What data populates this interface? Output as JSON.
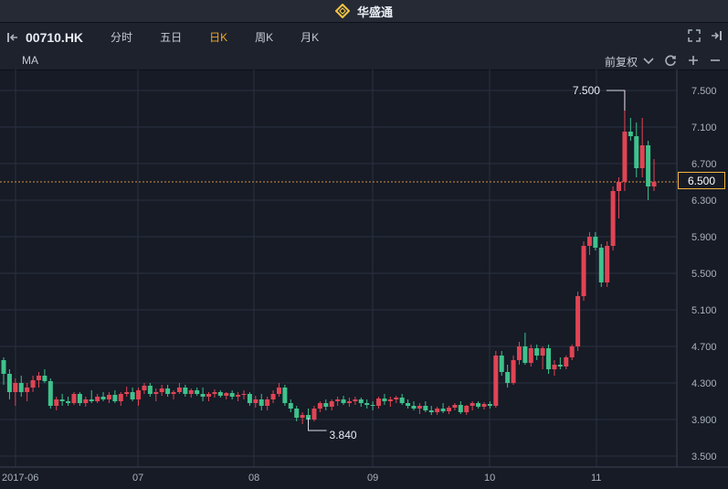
{
  "app": {
    "title": "华盛通"
  },
  "toolbar": {
    "symbol": "00710.HK",
    "tabs": [
      {
        "label": "分时",
        "active": false
      },
      {
        "label": "五日",
        "active": false
      },
      {
        "label": "日K",
        "active": true
      },
      {
        "label": "周K",
        "active": false
      },
      {
        "label": "月K",
        "active": false
      }
    ]
  },
  "subbar": {
    "indicator": "MA",
    "adjust": "前复权"
  },
  "colors": {
    "up": "#e04454",
    "down": "#3fc28c",
    "accent": "#f5a623",
    "background": "#161b26"
  },
  "chart_data": {
    "type": "candlestick",
    "ylim": [
      3.3,
      7.7
    ],
    "y_ticks": [
      "7.500",
      "7.100",
      "6.700",
      "6.300",
      "5.900",
      "5.500",
      "5.100",
      "4.700",
      "4.300",
      "3.900",
      "3.500"
    ],
    "x_ticks": [
      "2017-06",
      "07",
      "08",
      "09",
      "10",
      "11"
    ],
    "current_price": "6.500",
    "high_marker": {
      "label": "7.500",
      "value": 7.5
    },
    "low_marker": {
      "label": "3.840",
      "value": 3.84
    },
    "candles": [
      [
        4.55,
        4.58,
        4.28,
        4.4
      ],
      [
        4.4,
        4.45,
        4.12,
        4.2
      ],
      [
        4.2,
        4.35,
        4.05,
        4.3
      ],
      [
        4.3,
        4.38,
        4.15,
        4.2
      ],
      [
        4.2,
        4.3,
        4.1,
        4.25
      ],
      [
        4.25,
        4.38,
        4.2,
        4.33
      ],
      [
        4.33,
        4.42,
        4.25,
        4.38
      ],
      [
        4.38,
        4.45,
        4.3,
        4.32
      ],
      [
        4.32,
        4.35,
        4.02,
        4.05
      ],
      [
        4.05,
        4.15,
        4.0,
        4.12
      ],
      [
        4.12,
        4.18,
        4.05,
        4.1
      ],
      [
        4.1,
        4.15,
        4.05,
        4.08
      ],
      [
        4.08,
        4.2,
        4.06,
        4.18
      ],
      [
        4.18,
        4.2,
        4.05,
        4.08
      ],
      [
        4.08,
        4.15,
        4.04,
        4.12
      ],
      [
        4.12,
        4.22,
        4.08,
        4.1
      ],
      [
        4.1,
        4.18,
        4.08,
        4.15
      ],
      [
        4.15,
        4.2,
        4.1,
        4.12
      ],
      [
        4.12,
        4.2,
        4.08,
        4.17
      ],
      [
        4.17,
        4.22,
        4.08,
        4.1
      ],
      [
        4.1,
        4.2,
        4.05,
        4.18
      ],
      [
        4.18,
        4.26,
        4.15,
        4.2
      ],
      [
        4.2,
        4.25,
        4.1,
        4.12
      ],
      [
        4.12,
        4.25,
        4.05,
        4.22
      ],
      [
        4.22,
        4.3,
        4.18,
        4.27
      ],
      [
        4.27,
        4.3,
        4.15,
        4.18
      ],
      [
        4.18,
        4.24,
        4.1,
        4.2
      ],
      [
        4.2,
        4.28,
        4.16,
        4.24
      ],
      [
        4.24,
        4.28,
        4.15,
        4.18
      ],
      [
        4.18,
        4.22,
        4.12,
        4.2
      ],
      [
        4.2,
        4.3,
        4.18,
        4.25
      ],
      [
        4.25,
        4.28,
        4.15,
        4.18
      ],
      [
        4.18,
        4.24,
        4.14,
        4.22
      ],
      [
        4.22,
        4.25,
        4.16,
        4.18
      ],
      [
        4.18,
        4.25,
        4.1,
        4.15
      ],
      [
        4.15,
        4.2,
        4.1,
        4.18
      ],
      [
        4.18,
        4.23,
        4.14,
        4.2
      ],
      [
        4.2,
        4.22,
        4.14,
        4.16
      ],
      [
        4.16,
        4.2,
        4.12,
        4.19
      ],
      [
        4.19,
        4.22,
        4.12,
        4.15
      ],
      [
        4.15,
        4.2,
        4.1,
        4.17
      ],
      [
        4.17,
        4.22,
        4.12,
        4.18
      ],
      [
        4.18,
        4.2,
        4.05,
        4.08
      ],
      [
        4.08,
        4.16,
        4.03,
        4.12
      ],
      [
        4.12,
        4.18,
        4.0,
        4.05
      ],
      [
        4.05,
        4.15,
        4.0,
        4.12
      ],
      [
        4.12,
        4.22,
        4.08,
        4.18
      ],
      [
        4.18,
        4.3,
        4.15,
        4.25
      ],
      [
        4.25,
        4.28,
        4.05,
        4.08
      ],
      [
        4.08,
        4.12,
        3.98,
        4.02
      ],
      [
        4.02,
        4.05,
        3.88,
        3.92
      ],
      [
        3.92,
        3.98,
        3.85,
        3.95
      ],
      [
        3.95,
        4.02,
        3.84,
        3.9
      ],
      [
        3.9,
        4.05,
        3.88,
        4.02
      ],
      [
        4.02,
        4.1,
        3.98,
        4.08
      ],
      [
        4.08,
        4.12,
        4.0,
        4.04
      ],
      [
        4.04,
        4.12,
        4.0,
        4.1
      ],
      [
        4.1,
        4.15,
        4.05,
        4.12
      ],
      [
        4.12,
        4.16,
        4.06,
        4.08
      ],
      [
        4.08,
        4.14,
        4.04,
        4.1
      ],
      [
        4.1,
        4.15,
        4.06,
        4.12
      ],
      [
        4.12,
        4.14,
        4.04,
        4.08
      ],
      [
        4.08,
        4.12,
        4.02,
        4.06
      ],
      [
        4.06,
        4.1,
        4.0,
        4.05
      ],
      [
        4.05,
        4.15,
        4.02,
        4.13
      ],
      [
        4.13,
        4.18,
        4.06,
        4.1
      ],
      [
        4.1,
        4.15,
        4.04,
        4.12
      ],
      [
        4.12,
        4.16,
        4.08,
        4.14
      ],
      [
        4.14,
        4.18,
        4.06,
        4.08
      ],
      [
        4.08,
        4.12,
        4.02,
        4.05
      ],
      [
        4.05,
        4.1,
        4.0,
        4.02
      ],
      [
        4.02,
        4.08,
        3.96,
        4.05
      ],
      [
        4.05,
        4.1,
        3.98,
        4.0
      ],
      [
        4.0,
        4.05,
        3.95,
        3.98
      ],
      [
        3.98,
        4.04,
        3.95,
        4.02
      ],
      [
        4.02,
        4.08,
        3.97,
        3.99
      ],
      [
        3.99,
        4.05,
        3.96,
        4.03
      ],
      [
        4.03,
        4.08,
        4.0,
        4.06
      ],
      [
        4.06,
        4.1,
        3.96,
        3.98
      ],
      [
        3.98,
        4.06,
        3.95,
        4.05
      ],
      [
        4.05,
        4.1,
        4.0,
        4.08
      ],
      [
        4.08,
        4.1,
        4.02,
        4.04
      ],
      [
        4.04,
        4.09,
        4.01,
        4.07
      ],
      [
        4.07,
        4.1,
        4.02,
        4.05
      ],
      [
        4.05,
        4.65,
        4.03,
        4.6
      ],
      [
        4.6,
        4.65,
        4.38,
        4.42
      ],
      [
        4.42,
        4.5,
        4.25,
        4.3
      ],
      [
        4.3,
        4.6,
        4.28,
        4.55
      ],
      [
        4.55,
        4.75,
        4.5,
        4.7
      ],
      [
        4.7,
        4.85,
        4.5,
        4.52
      ],
      [
        4.52,
        4.72,
        4.48,
        4.68
      ],
      [
        4.68,
        4.72,
        4.55,
        4.6
      ],
      [
        4.6,
        4.7,
        4.45,
        4.68
      ],
      [
        4.68,
        4.72,
        4.4,
        4.45
      ],
      [
        4.45,
        4.55,
        4.38,
        4.5
      ],
      [
        4.5,
        4.58,
        4.45,
        4.48
      ],
      [
        4.48,
        4.6,
        4.45,
        4.58
      ],
      [
        4.58,
        4.72,
        4.55,
        4.7
      ],
      [
        4.7,
        5.3,
        4.65,
        5.25
      ],
      [
        5.25,
        5.85,
        5.2,
        5.8
      ],
      [
        5.8,
        5.95,
        5.7,
        5.9
      ],
      [
        5.9,
        5.95,
        5.75,
        5.78
      ],
      [
        5.78,
        5.82,
        5.35,
        5.4
      ],
      [
        5.4,
        5.85,
        5.35,
        5.8
      ],
      [
        5.8,
        6.45,
        5.75,
        6.4
      ],
      [
        6.4,
        6.55,
        6.1,
        6.5
      ],
      [
        6.5,
        7.5,
        6.4,
        7.05
      ],
      [
        7.05,
        7.2,
        6.95,
        7.0
      ],
      [
        7.0,
        7.15,
        6.55,
        6.65
      ],
      [
        6.65,
        7.2,
        6.55,
        6.9
      ],
      [
        6.9,
        6.95,
        6.3,
        6.45
      ],
      [
        6.45,
        6.75,
        6.4,
        6.5
      ]
    ]
  }
}
